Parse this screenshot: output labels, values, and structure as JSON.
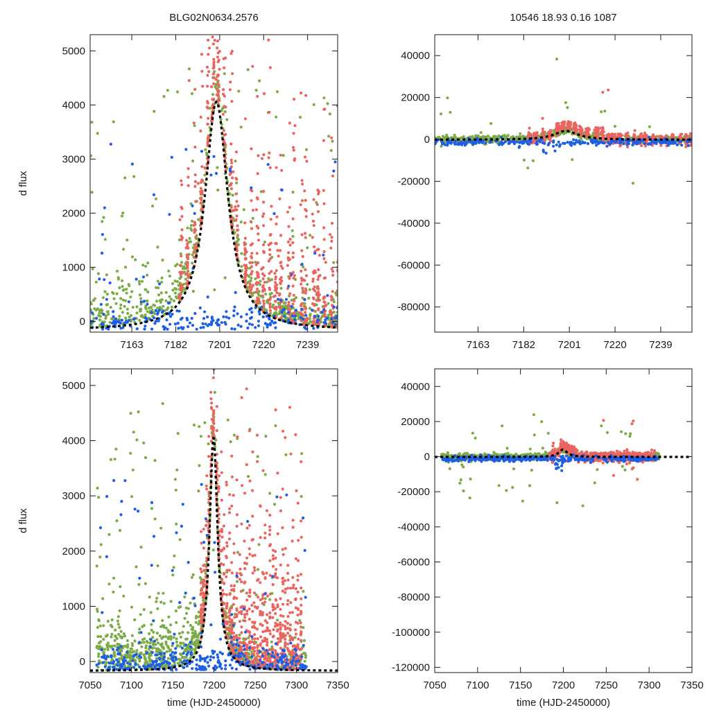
{
  "figure": {
    "title_left": "BLG02N0634.2576",
    "title_right": "10546  18.93  0.16  1087",
    "ylabel": "d flux",
    "xlabel": "time (HJD-2450000)"
  },
  "colors": {
    "green": "#7cab48",
    "red": "#ea6460",
    "blue": "#1d5ee6",
    "model": "#000000",
    "axis": "#1a1a1a"
  },
  "model": {
    "t0": 7199.6,
    "amp": 4230,
    "tau": 6.0,
    "base": -170
  },
  "chart_data": [
    {
      "id": "top-left",
      "type": "scatter",
      "title": "BLG02N0634.2576",
      "xlabel": "",
      "ylabel": "d flux",
      "xlim": [
        7145,
        7252
      ],
      "ylim": [
        -200,
        5300
      ],
      "xticks": [
        7163,
        7182,
        7201,
        7220,
        7239
      ],
      "yticks": [
        0,
        1000,
        2000,
        3000,
        4000,
        5000
      ],
      "series": [
        "green",
        "red",
        "blue",
        "model"
      ]
    },
    {
      "id": "top-right",
      "type": "scatter",
      "title": "10546  18.93  0.16  1087",
      "xlabel": "",
      "ylabel": "",
      "xlim": [
        7145,
        7252
      ],
      "ylim": [
        -92000,
        50000
      ],
      "xticks": [
        7163,
        7182,
        7201,
        7220,
        7239
      ],
      "yticks": [
        -80000,
        -60000,
        -40000,
        -20000,
        0,
        20000,
        40000
      ],
      "series": [
        "green",
        "red",
        "blue",
        "model"
      ]
    },
    {
      "id": "bottom-left",
      "type": "scatter",
      "title": "",
      "xlabel": "time (HJD-2450000)",
      "ylabel": "d flux",
      "xlim": [
        7050,
        7350
      ],
      "ylim": [
        -200,
        5300
      ],
      "xticks": [
        7050,
        7100,
        7150,
        7200,
        7250,
        7300,
        7350
      ],
      "yticks": [
        0,
        1000,
        2000,
        3000,
        4000,
        5000
      ],
      "series": [
        "green",
        "red",
        "blue",
        "model"
      ]
    },
    {
      "id": "bottom-right",
      "type": "scatter",
      "title": "",
      "xlabel": "time (HJD-2450000)",
      "ylabel": "",
      "xlim": [
        7050,
        7350
      ],
      "ylim": [
        -123000,
        50000
      ],
      "xticks": [
        7050,
        7100,
        7150,
        7200,
        7250,
        7300,
        7350
      ],
      "yticks": [
        -120000,
        -100000,
        -80000,
        -60000,
        -40000,
        -20000,
        0,
        20000,
        40000
      ],
      "series": [
        "green",
        "red",
        "blue",
        "model"
      ]
    }
  ]
}
